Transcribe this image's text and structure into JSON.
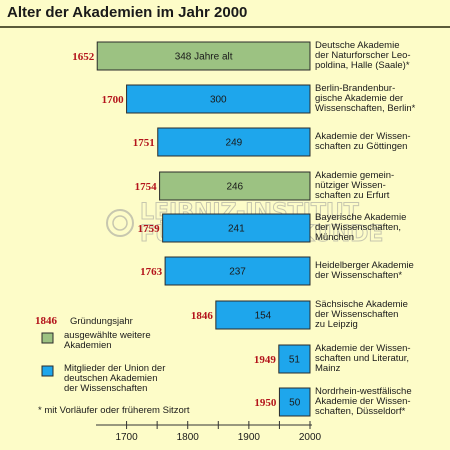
{
  "title": "Alter der Akademien im Jahr 2000",
  "watermark": [
    "LEIBNIZ-INSTITUT",
    "FÜR LÄNDERKUNDE"
  ],
  "colors": {
    "background": "#fdfcc8",
    "green": "#9cc282",
    "blue": "#1ea6ec",
    "year_red": "#b3131b",
    "axis": "#333333"
  },
  "legend": {
    "year_sample": "1846",
    "year_caption": "Gründungsjahr",
    "green_caption": [
      "ausgewählte weitere",
      "Akademien"
    ],
    "blue_caption": [
      "Mitglieder der Union der",
      "deutschen Akademien",
      "der Wissenschaften"
    ],
    "footnote": "* mit Vorläufer oder früherem Sitzort"
  },
  "chart_data": {
    "type": "bar",
    "orientation": "horizontal",
    "xlim": [
      1650,
      2000
    ],
    "x_ticks": [
      1700,
      1800,
      1900,
      2000
    ],
    "minor_tick_step": 50,
    "bars": [
      {
        "start": 1652,
        "end": 2000,
        "value_label": "348 Jahre alt",
        "category": "green",
        "year_label": "1652",
        "label": [
          "Deutsche Akademie",
          "der Naturforscher Leo-",
          "poldina, Halle (Saale)*"
        ]
      },
      {
        "start": 1700,
        "end": 2000,
        "value_label": "300",
        "category": "blue",
        "year_label": "1700",
        "label": [
          "Berlin-Brandenbur-",
          "gische Akademie der",
          "Wissenschaften, Berlin*"
        ]
      },
      {
        "start": 1751,
        "end": 2000,
        "value_label": "249",
        "category": "blue",
        "year_label": "1751",
        "label": [
          "Akademie der Wissen-",
          "schaften zu Göttingen"
        ]
      },
      {
        "start": 1754,
        "end": 2000,
        "value_label": "246",
        "category": "green",
        "year_label": "1754",
        "label": [
          "Akademie gemein-",
          "nütziger Wissen-",
          "schaften zu Erfurt"
        ]
      },
      {
        "start": 1759,
        "end": 2000,
        "value_label": "241",
        "category": "blue",
        "year_label": "1759",
        "label": [
          "Bayerische Akademie",
          "der Wissenschaften,",
          "München"
        ]
      },
      {
        "start": 1763,
        "end": 2000,
        "value_label": "237",
        "category": "blue",
        "year_label": "1763",
        "label": [
          "Heidelberger Akademie",
          "der Wissenschaften*"
        ]
      },
      {
        "start": 1846,
        "end": 2000,
        "value_label": "154",
        "category": "blue",
        "year_label": "1846",
        "label": [
          "Sächsische Akademie",
          "der Wissenschaften",
          "zu Leipzig"
        ]
      },
      {
        "start": 1949,
        "end": 2000,
        "value_label": "51",
        "category": "blue",
        "year_label": "1949",
        "label": [
          "Akademie der Wissen-",
          "schaften und Literatur,",
          "Mainz"
        ]
      },
      {
        "start": 1950,
        "end": 2000,
        "value_label": "50",
        "category": "blue",
        "year_label": "1950",
        "label": [
          "Nordrhein-westfälische",
          "Akademie der Wissen-",
          "schaften, Düsseldorf*"
        ]
      }
    ]
  }
}
